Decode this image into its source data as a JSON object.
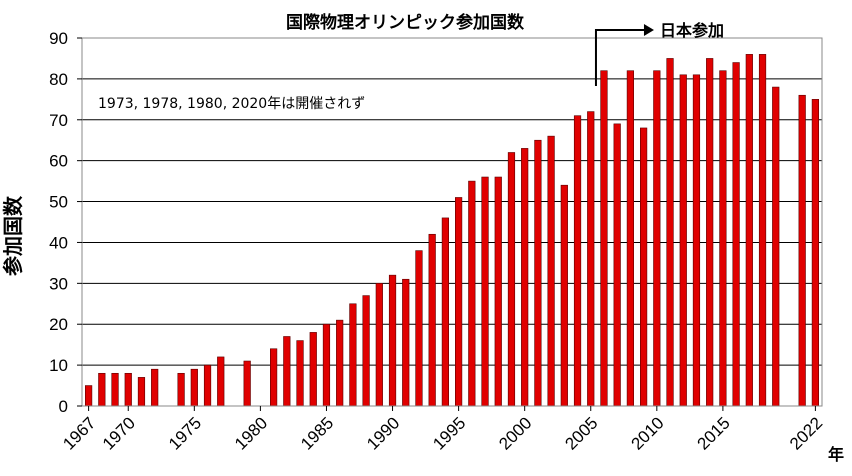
{
  "chart_data": {
    "type": "bar",
    "title": "国際物理オリンピック参加国数",
    "ylabel": "参加国数",
    "x_unit_label": "年",
    "note": "1973, 1978, 1980, 2020年は開催されず",
    "callout": "日本参加",
    "callout_year": 2006,
    "ylim": [
      0,
      90
    ],
    "yticks": [
      0,
      10,
      20,
      30,
      40,
      50,
      60,
      70,
      80,
      90
    ],
    "xticks": [
      1967,
      1970,
      1975,
      1980,
      1985,
      1990,
      1995,
      2000,
      2005,
      2010,
      2015,
      2022
    ],
    "grid": true,
    "bar_color": "#e00000",
    "series": [
      {
        "x": [
          1967,
          1968,
          1969,
          1970,
          1971,
          1972,
          1974,
          1975,
          1976,
          1977,
          1979,
          1981,
          1982,
          1983,
          1984,
          1985,
          1986,
          1987,
          1988,
          1989,
          1990,
          1991,
          1992,
          1993,
          1994,
          1995,
          1996,
          1997,
          1998,
          1999,
          2000,
          2001,
          2002,
          2003,
          2004,
          2005,
          2006,
          2007,
          2008,
          2009,
          2010,
          2011,
          2012,
          2013,
          2014,
          2015,
          2016,
          2017,
          2018,
          2019,
          2021,
          2022
        ],
        "values": [
          5,
          8,
          8,
          8,
          7,
          9,
          8,
          9,
          10,
          12,
          11,
          14,
          17,
          16,
          18,
          20,
          21,
          25,
          27,
          30,
          32,
          31,
          38,
          42,
          46,
          51,
          55,
          56,
          56,
          62,
          63,
          65,
          66,
          54,
          71,
          72,
          82,
          69,
          82,
          68,
          82,
          85,
          81,
          81,
          85,
          82,
          84,
          86,
          86,
          78,
          76,
          75
        ]
      }
    ]
  }
}
